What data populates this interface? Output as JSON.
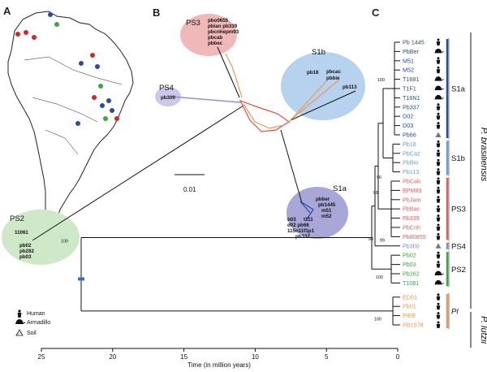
{
  "panels": {
    "a": "A",
    "b": "B",
    "c": "C"
  },
  "colors": {
    "s1a": "#2b4b9c",
    "s1b": "#6b9fd6",
    "ps3": "#e06060",
    "ps4": "#8888cc",
    "ps2": "#3aa840",
    "lutzii": "#e89a58",
    "map_land": "#ffffff"
  },
  "map_points": [
    {
      "color": "#cc2a2a"
    },
    {
      "color": "#cc2a2a"
    },
    {
      "color": "#cc2a2a"
    },
    {
      "color": "#2b4b9c"
    },
    {
      "color": "#3aa840"
    },
    {
      "color": "#2b4b9c"
    },
    {
      "color": "#cc2a2a"
    },
    {
      "color": "#2b4b9c"
    },
    {
      "color": "#3aa840"
    },
    {
      "color": "#cc2a2a"
    },
    {
      "color": "#2b4b9c"
    },
    {
      "color": "#2b4b9c"
    },
    {
      "color": "#2b4b9c"
    },
    {
      "color": "#3aa840"
    },
    {
      "color": "#cc2a2a"
    },
    {
      "color": "#2b4b9c"
    }
  ],
  "network": {
    "ps3": {
      "title": "PS3",
      "members": [
        "pbo0655",
        "pbian pb339",
        "pbcnhepm93",
        "pbcab",
        "pbbec"
      ]
    },
    "s1b": {
      "title": "S1b",
      "members": [
        "pb18",
        "pbcac",
        "pbbie",
        "pb113"
      ]
    },
    "ps4": {
      "title": "PS4",
      "members": [
        "pb300"
      ]
    },
    "s1a": {
      "title": "S1a",
      "members": [
        "pbber",
        "pb1445",
        "m51",
        "m52",
        "b03",
        "t111",
        "d02 pb66",
        "115n11f1p1",
        "pb337"
      ]
    },
    "ps2": {
      "title": "PS2",
      "members": [
        "11061",
        "pb02",
        "pb282",
        "pb03"
      ]
    },
    "scale": "0.01"
  },
  "tree": {
    "tips": [
      {
        "name": "Pb 1445",
        "color": "#2b4b9c",
        "host": "human"
      },
      {
        "name": "PbBer",
        "color": "#2b4b9c",
        "host": "armadillo"
      },
      {
        "name": "M51",
        "color": "#2b4b9c",
        "host": "human"
      },
      {
        "name": "M52",
        "color": "#2b4b9c",
        "host": "human"
      },
      {
        "name": "T1681",
        "color": "#2b4b9c",
        "host": "armadillo"
      },
      {
        "name": "T1F1",
        "color": "#2b4b9c",
        "host": "armadillo"
      },
      {
        "name": "T16N1",
        "color": "#2b4b9c",
        "host": "armadillo"
      },
      {
        "name": "Pb337",
        "color": "#2b4b9c",
        "host": "human"
      },
      {
        "name": "D02",
        "color": "#2b4b9c",
        "host": "human"
      },
      {
        "name": "D03",
        "color": "#2b4b9c",
        "host": "human"
      },
      {
        "name": "Pb66",
        "color": "#2b4b9c",
        "host": "soil"
      },
      {
        "name": "Pb18",
        "color": "#6b9fd6",
        "host": "human"
      },
      {
        "name": "PbCaz",
        "color": "#6b9fd6",
        "host": "human"
      },
      {
        "name": "PbBio",
        "color": "#6b9fd6",
        "host": "human"
      },
      {
        "name": "Pb113",
        "color": "#6b9fd6",
        "host": "human"
      },
      {
        "name": "PbCab",
        "color": "#e06060",
        "host": "human"
      },
      {
        "name": "EPM83",
        "color": "#e06060",
        "host": "human"
      },
      {
        "name": "PbJam",
        "color": "#e06060",
        "host": "human"
      },
      {
        "name": "PbBac",
        "color": "#e06060",
        "host": "human"
      },
      {
        "name": "Pb339",
        "color": "#e06060",
        "host": "human"
      },
      {
        "name": "PbCnh",
        "color": "#e06060",
        "host": "human"
      },
      {
        "name": "Pb80855",
        "color": "#e06060",
        "host": "human"
      },
      {
        "name": "Pb300",
        "color": "#8888cc",
        "host": "soil"
      },
      {
        "name": "Pb02",
        "color": "#3aa840",
        "host": "human"
      },
      {
        "name": "Pb03",
        "color": "#3aa840",
        "host": "human"
      },
      {
        "name": "Pb262",
        "color": "#3aa840",
        "host": "armadillo"
      },
      {
        "name": "T1081",
        "color": "#3aa840",
        "host": "armadillo"
      },
      {
        "name": "ED01",
        "color": "#e89a58",
        "host": "human"
      },
      {
        "name": "Pb01",
        "color": "#e89a58",
        "host": "human"
      },
      {
        "name": "PIEE",
        "color": "#e89a58",
        "host": "human"
      },
      {
        "name": "PB1578",
        "color": "#e89a58",
        "host": "human"
      }
    ],
    "clades": [
      {
        "label": "S1a",
        "color": "#2b4b9c"
      },
      {
        "label": "S1b",
        "color": "#6b9fd6"
      },
      {
        "label": "PS3",
        "color": "#e06060"
      },
      {
        "label": "PS4",
        "color": "#8888cc"
      },
      {
        "label": "PS2",
        "color": "#3aa840"
      },
      {
        "label": "Pl",
        "color": "#e89a58"
      }
    ],
    "species": [
      "P. brasiliensis",
      "P. lutzii"
    ],
    "bootstrap": [
      "100",
      "96",
      "98",
      "98",
      "99",
      "100",
      "100",
      "100"
    ]
  },
  "axis": {
    "label": "Time (in million years)",
    "ticks": [
      25,
      20,
      15,
      10,
      5,
      0
    ],
    "range": [
      25,
      0
    ]
  },
  "legend": {
    "human": "Human",
    "armadillo": "Armadillo",
    "soil": "Soil"
  }
}
